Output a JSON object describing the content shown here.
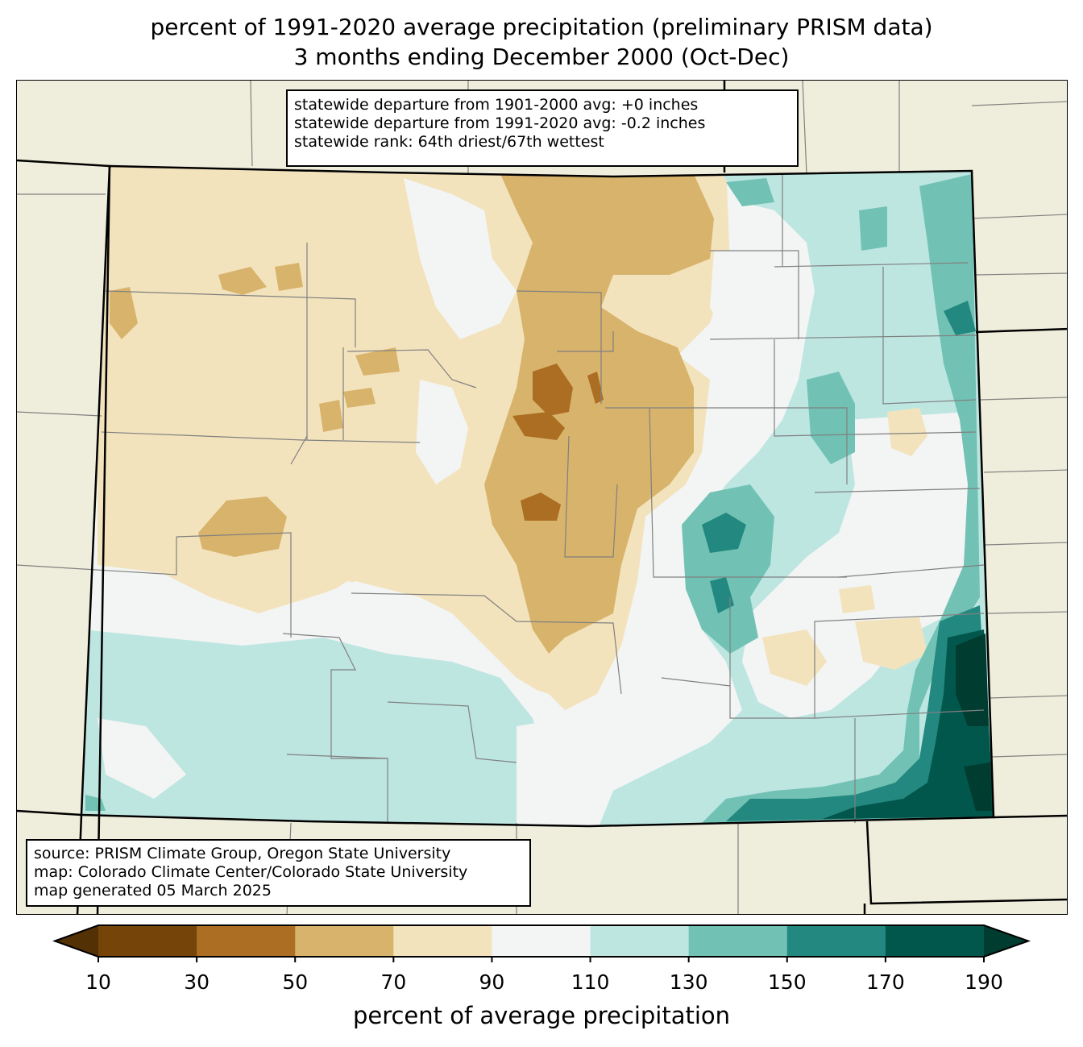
{
  "title": {
    "line1": "percent of 1991-2020 average precipitation (preliminary PRISM data)",
    "line2": "3 months ending December 2000 (Oct-Dec)"
  },
  "stats": {
    "line1": "statewide departure from 1901-2000 avg: +0 inches",
    "line2": "statewide departure from 1991-2020 avg: -0.2 inches",
    "line3": "statewide rank: 64th driest/67th wettest"
  },
  "source": {
    "line1": "source: PRISM Climate Group, Oregon State University",
    "line2": "map: Colorado Climate Center/Colorado State University",
    "line3": "map generated 05 March 2025"
  },
  "colorbar": {
    "label": "percent of average precipitation",
    "ticks": [
      "10",
      "30",
      "50",
      "70",
      "90",
      "110",
      "130",
      "150",
      "170",
      "190"
    ],
    "under_color": "#543005",
    "over_color": "#003c30",
    "bins": [
      {
        "from": 10,
        "to": 30,
        "color": "#744408"
      },
      {
        "from": 30,
        "to": 50,
        "color": "#ab6e23"
      },
      {
        "from": 50,
        "to": 70,
        "color": "#d8b36c"
      },
      {
        "from": 70,
        "to": 90,
        "color": "#f3e3bd"
      },
      {
        "from": 90,
        "to": 110,
        "color": "#f3f4f4"
      },
      {
        "from": 110,
        "to": 130,
        "color": "#bde6e1"
      },
      {
        "from": 130,
        "to": 150,
        "color": "#71c2b4"
      },
      {
        "from": 150,
        "to": 170,
        "color": "#238880"
      },
      {
        "from": 170,
        "to": 190,
        "color": "#02574c"
      }
    ]
  },
  "map_colors": {
    "background": "#efeedc",
    "state_border": "#000000",
    "county_border": "#808080"
  }
}
